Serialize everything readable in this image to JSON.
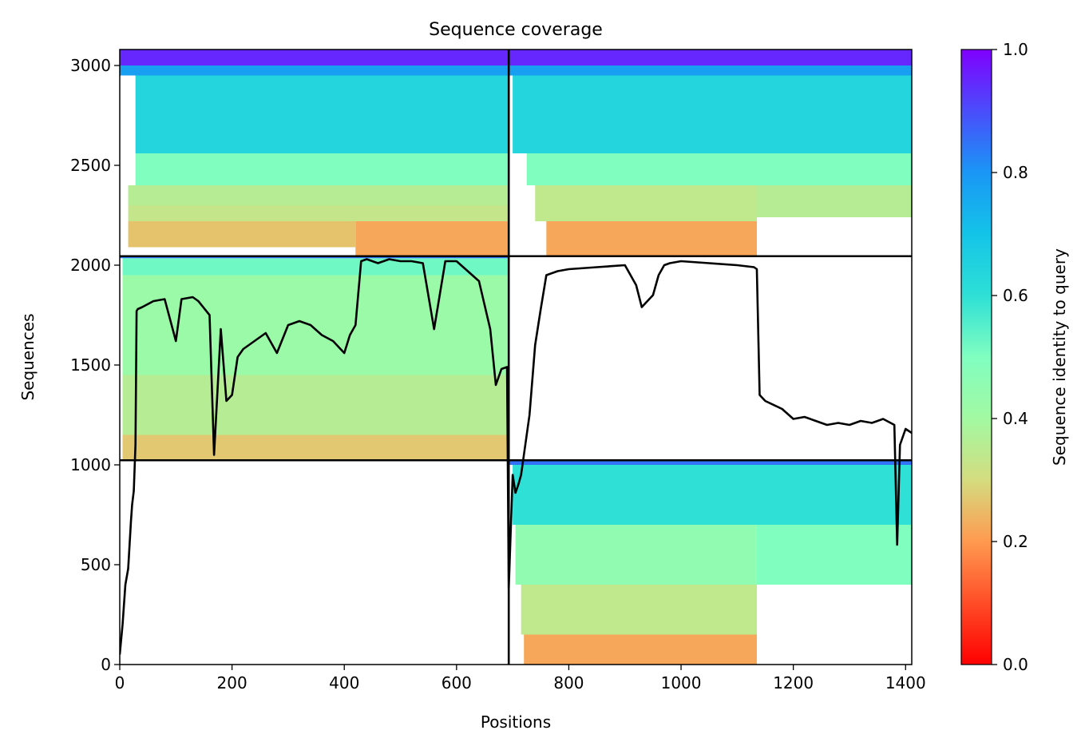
{
  "chart_data": {
    "type": "heatmap",
    "title": "Sequence coverage",
    "xlabel": "Positions",
    "ylabel": "Sequences",
    "xlim": [
      0,
      1411
    ],
    "ylim": [
      0,
      3080
    ],
    "xticks": [
      0,
      200,
      400,
      600,
      800,
      1000,
      1200,
      1400
    ],
    "yticks": [
      0,
      500,
      1000,
      1500,
      2000,
      2500,
      3000
    ],
    "colormap": "rainbow_r",
    "colorbar": {
      "label": "Sequence identity to query",
      "range": [
        0,
        1
      ],
      "ticks": [
        "0.0",
        "0.2",
        "0.4",
        "0.6",
        "0.8",
        "1.0"
      ]
    },
    "grid": false,
    "chain_boundaries": {
      "x": 693,
      "y": [
        1023,
        2045
      ]
    },
    "blocks": [
      {
        "name": "upper-left",
        "x_range": [
          0,
          693
        ],
        "y_range": [
          2045,
          3080
        ],
        "bands": [
          {
            "y0": 2045,
            "y1": 2090,
            "x0": 420,
            "x1": 693,
            "identity": 0.22
          },
          {
            "y0": 2090,
            "y1": 2220,
            "x0": 420,
            "x1": 693,
            "identity": 0.22
          },
          {
            "y0": 2090,
            "y1": 2220,
            "x0": 15,
            "x1": 420,
            "identity": 0.26
          },
          {
            "y0": 2220,
            "y1": 2300,
            "x0": 15,
            "x1": 693,
            "identity": 0.33
          },
          {
            "y0": 2300,
            "y1": 2400,
            "x0": 15,
            "x1": 693,
            "identity": 0.36
          },
          {
            "y0": 2400,
            "y1": 2560,
            "x0": 28,
            "x1": 693,
            "identity": 0.5
          },
          {
            "y0": 2560,
            "y1": 2950,
            "x0": 28,
            "x1": 693,
            "identity": 0.64
          },
          {
            "y0": 2950,
            "y1": 3000,
            "x0": 0,
            "x1": 693,
            "identity": 0.78
          },
          {
            "y0": 3000,
            "y1": 3080,
            "x0": 0,
            "x1": 693,
            "identity": 0.95
          }
        ]
      },
      {
        "name": "upper-right",
        "x_range": [
          693,
          1411
        ],
        "y_range": [
          2045,
          3080
        ],
        "bands": [
          {
            "y0": 2045,
            "y1": 2220,
            "x0": 760,
            "x1": 1135,
            "identity": 0.22
          },
          {
            "y0": 2220,
            "y1": 2400,
            "x0": 740,
            "x1": 1135,
            "identity": 0.34
          },
          {
            "y0": 2240,
            "y1": 2400,
            "x0": 1135,
            "x1": 1411,
            "identity": 0.36
          },
          {
            "y0": 2400,
            "y1": 2560,
            "x0": 725,
            "x1": 1411,
            "identity": 0.5
          },
          {
            "y0": 2560,
            "y1": 2950,
            "x0": 700,
            "x1": 1411,
            "identity": 0.64
          },
          {
            "y0": 2950,
            "y1": 3000,
            "x0": 693,
            "x1": 1411,
            "identity": 0.78
          },
          {
            "y0": 3000,
            "y1": 3080,
            "x0": 693,
            "x1": 1411,
            "identity": 0.95
          }
        ]
      },
      {
        "name": "middle-left",
        "x_range": [
          0,
          693
        ],
        "y_range": [
          1023,
          2045
        ],
        "bands": [
          {
            "y0": 1023,
            "y1": 1150,
            "x0": 5,
            "x1": 693,
            "identity": 0.27
          },
          {
            "y0": 1150,
            "y1": 1450,
            "x0": 5,
            "x1": 693,
            "identity": 0.36
          },
          {
            "y0": 1450,
            "y1": 1950,
            "x0": 5,
            "x1": 693,
            "identity": 0.42
          },
          {
            "y0": 1950,
            "y1": 2035,
            "x0": 5,
            "x1": 693,
            "identity": 0.52
          },
          {
            "y0": 2035,
            "y1": 2045,
            "x0": 0,
            "x1": 693,
            "identity": 0.85
          }
        ]
      },
      {
        "name": "lower-right",
        "x_range": [
          693,
          1411
        ],
        "y_range": [
          0,
          1023
        ],
        "bands": [
          {
            "y0": 0,
            "y1": 150,
            "x0": 720,
            "x1": 1135,
            "identity": 0.22
          },
          {
            "y0": 150,
            "y1": 400,
            "x0": 715,
            "x1": 1135,
            "identity": 0.34
          },
          {
            "y0": 400,
            "y1": 700,
            "x0": 705,
            "x1": 1135,
            "identity": 0.45
          },
          {
            "y0": 400,
            "y1": 700,
            "x0": 1135,
            "x1": 1411,
            "identity": 0.5
          },
          {
            "y0": 700,
            "y1": 1000,
            "x0": 700,
            "x1": 1411,
            "identity": 0.6
          },
          {
            "y0": 1000,
            "y1": 1023,
            "x0": 693,
            "x1": 1411,
            "identity": 0.85
          }
        ]
      }
    ],
    "series": [
      {
        "type": "line",
        "color": "#000000",
        "x": [
          0,
          5,
          10,
          15,
          20,
          22,
          25,
          28,
          30,
          32,
          40,
          60,
          80,
          100,
          110,
          130,
          140,
          160,
          168,
          180,
          190,
          200,
          210,
          220,
          240,
          260,
          280,
          300,
          320,
          340,
          360,
          380,
          400,
          410,
          420,
          430,
          440,
          460,
          480,
          500,
          520,
          540,
          560,
          580,
          600,
          620,
          640,
          660,
          670,
          680,
          690,
          693,
          700,
          705,
          710,
          715,
          720,
          730,
          740,
          750,
          760,
          770,
          780,
          800,
          850,
          900,
          920,
          930,
          950,
          960,
          970,
          980,
          1000,
          1050,
          1100,
          1130,
          1135,
          1140,
          1150,
          1180,
          1200,
          1220,
          1240,
          1260,
          1280,
          1300,
          1320,
          1340,
          1360,
          1380,
          1385,
          1390,
          1400,
          1411
        ],
        "y": [
          50,
          200,
          400,
          480,
          720,
          800,
          870,
          1100,
          1770,
          1780,
          1790,
          1820,
          1830,
          1620,
          1830,
          1840,
          1820,
          1750,
          1050,
          1680,
          1320,
          1350,
          1540,
          1580,
          1620,
          1660,
          1560,
          1700,
          1720,
          1700,
          1650,
          1620,
          1560,
          1650,
          1700,
          2020,
          2030,
          2010,
          2030,
          2020,
          2020,
          2010,
          1680,
          2020,
          2020,
          1970,
          1920,
          1680,
          1400,
          1480,
          1490,
          380,
          950,
          860,
          900,
          950,
          1050,
          1250,
          1600,
          1780,
          1950,
          1960,
          1970,
          1980,
          1990,
          2000,
          1900,
          1790,
          1850,
          1950,
          2000,
          2010,
          2020,
          2010,
          2000,
          1990,
          1980,
          1350,
          1320,
          1280,
          1230,
          1240,
          1220,
          1200,
          1210,
          1200,
          1220,
          1210,
          1230,
          1200,
          600,
          1100,
          1180,
          1160
        ]
      }
    ]
  }
}
